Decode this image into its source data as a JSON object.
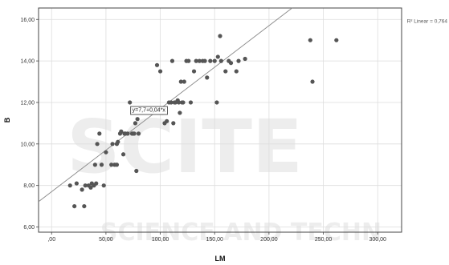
{
  "chart_data": {
    "type": "scatter",
    "xlabel": "LM",
    "ylabel": "B",
    "xlim": [
      -12,
      322
    ],
    "ylim": [
      5.75,
      16.55
    ],
    "x_ticks": [
      0,
      50,
      100,
      150,
      200,
      250,
      300
    ],
    "x_tick_labels": [
      ",00",
      "50,00",
      "100,00",
      "150,00",
      "200,00",
      "250,00",
      "300,00"
    ],
    "y_ticks": [
      6,
      8,
      10,
      12,
      14,
      16
    ],
    "y_tick_labels": [
      "6,00",
      "8,00",
      "10,00",
      "12,00",
      "14,00",
      "16,00"
    ],
    "grid": true,
    "fit_line": {
      "intercept": 7.7,
      "slope": 0.04,
      "label": "y=7,7+0,04*x"
    },
    "r_squared_label": "R² Linear = 0,764",
    "point_color": "#555555",
    "line_color": "#888888",
    "points": [
      [
        17,
        8.0
      ],
      [
        21,
        7.0
      ],
      [
        23,
        8.1
      ],
      [
        28,
        7.8
      ],
      [
        30,
        7.0
      ],
      [
        31,
        8.0
      ],
      [
        34,
        8.0
      ],
      [
        36,
        7.9
      ],
      [
        37,
        8.1
      ],
      [
        39,
        8.0
      ],
      [
        40,
        9.0
      ],
      [
        41,
        8.1
      ],
      [
        42,
        10.0
      ],
      [
        44,
        10.5
      ],
      [
        46,
        9.0
      ],
      [
        48,
        8.0
      ],
      [
        50,
        9.6
      ],
      [
        55,
        9.0
      ],
      [
        56,
        10.0
      ],
      [
        58,
        9.0
      ],
      [
        60,
        9.0
      ],
      [
        60,
        10.0
      ],
      [
        61,
        10.1
      ],
      [
        63,
        10.5
      ],
      [
        64,
        10.6
      ],
      [
        66,
        9.5
      ],
      [
        67,
        10.5
      ],
      [
        68,
        10.5
      ],
      [
        70,
        10.5
      ],
      [
        72,
        12.0
      ],
      [
        74,
        10.5
      ],
      [
        75,
        10.5
      ],
      [
        76,
        10.5
      ],
      [
        77,
        11.0
      ],
      [
        78,
        8.7
      ],
      [
        79,
        11.2
      ],
      [
        80,
        10.5
      ],
      [
        97,
        13.8
      ],
      [
        100,
        13.5
      ],
      [
        102,
        11.5
      ],
      [
        104,
        11.0
      ],
      [
        106,
        11.1
      ],
      [
        108,
        12.0
      ],
      [
        110,
        12.0
      ],
      [
        111,
        14.0
      ],
      [
        112,
        11.0
      ],
      [
        113,
        12.0
      ],
      [
        114,
        12.0
      ],
      [
        116,
        12.1
      ],
      [
        117,
        12.0
      ],
      [
        118,
        11.5
      ],
      [
        119,
        13.0
      ],
      [
        120,
        12.0
      ],
      [
        121,
        12.0
      ],
      [
        122,
        13.0
      ],
      [
        124,
        14.0
      ],
      [
        126,
        14.0
      ],
      [
        128,
        12.0
      ],
      [
        131,
        13.5
      ],
      [
        133,
        14.0
      ],
      [
        136,
        14.0
      ],
      [
        139,
        14.0
      ],
      [
        141,
        14.0
      ],
      [
        143,
        13.2
      ],
      [
        146,
        14.0
      ],
      [
        150,
        14.0
      ],
      [
        152,
        12.0
      ],
      [
        153,
        14.2
      ],
      [
        155,
        15.2
      ],
      [
        156,
        14.0
      ],
      [
        160,
        13.5
      ],
      [
        163,
        14.0
      ],
      [
        165,
        13.9
      ],
      [
        170,
        13.5
      ],
      [
        172,
        14.0
      ],
      [
        178,
        14.1
      ],
      [
        238,
        15.0
      ],
      [
        240,
        13.0
      ],
      [
        262,
        15.0
      ]
    ]
  },
  "watermark": {
    "line1": "SCITE",
    "line2": "SCIENCE AND TECHN"
  }
}
